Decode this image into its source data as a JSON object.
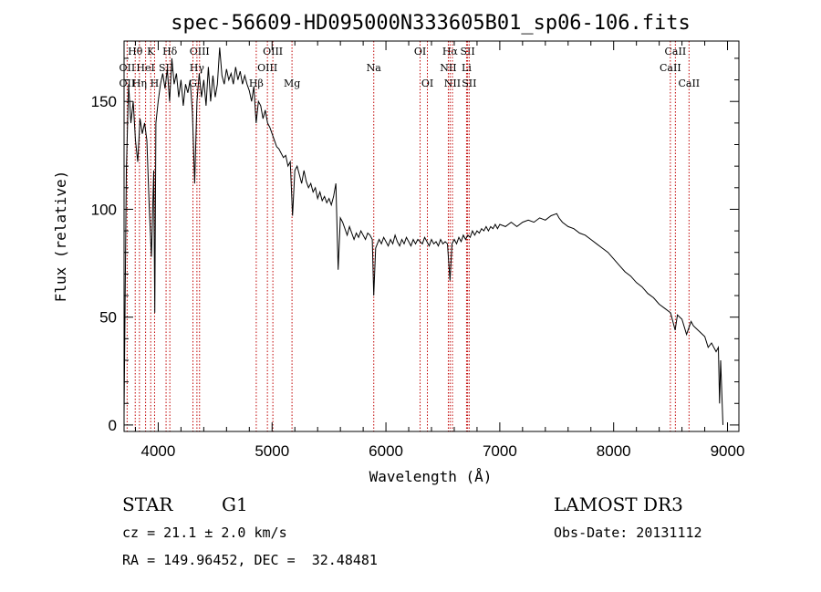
{
  "chart_data": {
    "type": "line",
    "title": "spec-56609-HD095000N333605B01_sp06-106.fits",
    "xlabel": "Wavelength (Å)",
    "ylabel": "Flux (relative)",
    "xlim": [
      3700,
      9100
    ],
    "ylim": [
      -3,
      178
    ],
    "xticks": [
      4000,
      5000,
      6000,
      7000,
      8000,
      9000
    ],
    "yticks": [
      0,
      50,
      100,
      150
    ],
    "grid": false,
    "series": [
      {
        "color": "#000000",
        "points": [
          [
            3700,
            5
          ],
          [
            3720,
            118
          ],
          [
            3740,
            158
          ],
          [
            3760,
            140
          ],
          [
            3780,
            150
          ],
          [
            3800,
            132
          ],
          [
            3820,
            122
          ],
          [
            3840,
            142
          ],
          [
            3860,
            135
          ],
          [
            3880,
            140
          ],
          [
            3900,
            132
          ],
          [
            3920,
            102
          ],
          [
            3940,
            78
          ],
          [
            3960,
            118
          ],
          [
            3970,
            52
          ],
          [
            3980,
            140
          ],
          [
            4000,
            150
          ],
          [
            4020,
            158
          ],
          [
            4040,
            163
          ],
          [
            4060,
            156
          ],
          [
            4080,
            165
          ],
          [
            4100,
            150
          ],
          [
            4120,
            170
          ],
          [
            4140,
            158
          ],
          [
            4160,
            163
          ],
          [
            4180,
            152
          ],
          [
            4200,
            160
          ],
          [
            4220,
            148
          ],
          [
            4240,
            158
          ],
          [
            4260,
            154
          ],
          [
            4280,
            160
          ],
          [
            4300,
            145
          ],
          [
            4320,
            112
          ],
          [
            4340,
            150
          ],
          [
            4360,
            163
          ],
          [
            4380,
            152
          ],
          [
            4400,
            160
          ],
          [
            4420,
            148
          ],
          [
            4440,
            166
          ],
          [
            4460,
            150
          ],
          [
            4480,
            162
          ],
          [
            4500,
            152
          ],
          [
            4520,
            158
          ],
          [
            4540,
            175
          ],
          [
            4560,
            162
          ],
          [
            4580,
            158
          ],
          [
            4600,
            165
          ],
          [
            4620,
            160
          ],
          [
            4640,
            163
          ],
          [
            4660,
            158
          ],
          [
            4680,
            166
          ],
          [
            4700,
            160
          ],
          [
            4720,
            164
          ],
          [
            4740,
            158
          ],
          [
            4760,
            162
          ],
          [
            4780,
            158
          ],
          [
            4800,
            155
          ],
          [
            4820,
            150
          ],
          [
            4840,
            157
          ],
          [
            4860,
            140
          ],
          [
            4880,
            150
          ],
          [
            4900,
            148
          ],
          [
            4920,
            142
          ],
          [
            4940,
            146
          ],
          [
            4960,
            140
          ],
          [
            4980,
            138
          ],
          [
            5000,
            135
          ],
          [
            5020,
            132
          ],
          [
            5040,
            129
          ],
          [
            5060,
            128
          ],
          [
            5080,
            126
          ],
          [
            5100,
            124
          ],
          [
            5120,
            125
          ],
          [
            5140,
            120
          ],
          [
            5160,
            122
          ],
          [
            5180,
            97
          ],
          [
            5200,
            118
          ],
          [
            5220,
            120
          ],
          [
            5240,
            116
          ],
          [
            5260,
            112
          ],
          [
            5280,
            118
          ],
          [
            5300,
            113
          ],
          [
            5320,
            110
          ],
          [
            5340,
            112
          ],
          [
            5360,
            108
          ],
          [
            5380,
            110
          ],
          [
            5400,
            105
          ],
          [
            5420,
            108
          ],
          [
            5440,
            104
          ],
          [
            5460,
            106
          ],
          [
            5480,
            103
          ],
          [
            5500,
            105
          ],
          [
            5520,
            102
          ],
          [
            5540,
            106
          ],
          [
            5560,
            112
          ],
          [
            5580,
            72
          ],
          [
            5600,
            96
          ],
          [
            5620,
            94
          ],
          [
            5640,
            91
          ],
          [
            5660,
            88
          ],
          [
            5680,
            92
          ],
          [
            5700,
            89
          ],
          [
            5720,
            86
          ],
          [
            5740,
            89
          ],
          [
            5760,
            87
          ],
          [
            5780,
            90
          ],
          [
            5800,
            88
          ],
          [
            5820,
            86
          ],
          [
            5840,
            89
          ],
          [
            5860,
            88
          ],
          [
            5880,
            86
          ],
          [
            5893,
            60
          ],
          [
            5910,
            82
          ],
          [
            5940,
            86
          ],
          [
            5960,
            84
          ],
          [
            5980,
            87
          ],
          [
            6000,
            85
          ],
          [
            6020,
            83
          ],
          [
            6040,
            86
          ],
          [
            6060,
            84
          ],
          [
            6080,
            88
          ],
          [
            6100,
            85
          ],
          [
            6120,
            83
          ],
          [
            6140,
            86
          ],
          [
            6160,
            84
          ],
          [
            6180,
            87
          ],
          [
            6200,
            85
          ],
          [
            6220,
            83
          ],
          [
            6240,
            86
          ],
          [
            6260,
            84
          ],
          [
            6280,
            86
          ],
          [
            6300,
            85
          ],
          [
            6320,
            84
          ],
          [
            6340,
            87
          ],
          [
            6360,
            85
          ],
          [
            6380,
            83
          ],
          [
            6400,
            86
          ],
          [
            6420,
            84
          ],
          [
            6440,
            85
          ],
          [
            6460,
            83
          ],
          [
            6480,
            86
          ],
          [
            6500,
            84
          ],
          [
            6520,
            85
          ],
          [
            6540,
            84
          ],
          [
            6563,
            67
          ],
          [
            6580,
            84
          ],
          [
            6600,
            86
          ],
          [
            6620,
            84
          ],
          [
            6640,
            87
          ],
          [
            6660,
            85
          ],
          [
            6680,
            88
          ],
          [
            6700,
            86
          ],
          [
            6720,
            88
          ],
          [
            6740,
            87
          ],
          [
            6760,
            90
          ],
          [
            6780,
            88
          ],
          [
            6800,
            90
          ],
          [
            6820,
            89
          ],
          [
            6840,
            91
          ],
          [
            6860,
            90
          ],
          [
            6880,
            92
          ],
          [
            6900,
            90
          ],
          [
            6920,
            92
          ],
          [
            6940,
            91
          ],
          [
            6960,
            93
          ],
          [
            6980,
            91
          ],
          [
            7000,
            93
          ],
          [
            7050,
            92
          ],
          [
            7100,
            94
          ],
          [
            7150,
            92
          ],
          [
            7200,
            94
          ],
          [
            7250,
            95
          ],
          [
            7300,
            94
          ],
          [
            7350,
            96
          ],
          [
            7400,
            95
          ],
          [
            7450,
            97
          ],
          [
            7500,
            98
          ],
          [
            7520,
            96
          ],
          [
            7550,
            94
          ],
          [
            7600,
            92
          ],
          [
            7650,
            91
          ],
          [
            7700,
            89
          ],
          [
            7750,
            88
          ],
          [
            7800,
            86
          ],
          [
            7850,
            84
          ],
          [
            7900,
            82
          ],
          [
            7950,
            80
          ],
          [
            8000,
            77
          ],
          [
            8050,
            74
          ],
          [
            8100,
            71
          ],
          [
            8150,
            69
          ],
          [
            8200,
            66
          ],
          [
            8250,
            64
          ],
          [
            8300,
            61
          ],
          [
            8350,
            59
          ],
          [
            8400,
            56
          ],
          [
            8450,
            54
          ],
          [
            8500,
            52
          ],
          [
            8540,
            44
          ],
          [
            8560,
            51
          ],
          [
            8600,
            49
          ],
          [
            8640,
            42
          ],
          [
            8680,
            48
          ],
          [
            8700,
            46
          ],
          [
            8740,
            44
          ],
          [
            8780,
            42
          ],
          [
            8800,
            41
          ],
          [
            8830,
            36
          ],
          [
            8860,
            38
          ],
          [
            8880,
            36
          ],
          [
            8900,
            34
          ],
          [
            8920,
            36
          ],
          [
            8930,
            10
          ],
          [
            8940,
            30
          ],
          [
            8960,
            0
          ]
        ]
      }
    ],
    "line_marks": [
      {
        "label": "Hθ",
        "wave": 3798,
        "row": 1
      },
      {
        "label": "OII",
        "wave": 3727,
        "row": 2
      },
      {
        "label": "OII",
        "wave": 3727,
        "row": 3
      },
      {
        "label": "HeI",
        "wave": 3889,
        "row": 2
      },
      {
        "label": "Hη",
        "wave": 3835,
        "row": 3
      },
      {
        "label": "K",
        "wave": 3934,
        "row": 1
      },
      {
        "label": "H",
        "wave": 3968,
        "row": 3
      },
      {
        "label": "SII",
        "wave": 4069,
        "row": 2
      },
      {
        "label": "Hδ",
        "wave": 4102,
        "row": 1
      },
      {
        "label": "OIII",
        "wave": 4363,
        "row": 1
      },
      {
        "label": "Hγ",
        "wave": 4340,
        "row": 2
      },
      {
        "label": "G",
        "wave": 4305,
        "row": 3
      },
      {
        "label": "Hβ",
        "wave": 4861,
        "row": 3
      },
      {
        "label": "OIII",
        "wave": 5007,
        "row": 1
      },
      {
        "label": "OIII",
        "wave": 4959,
        "row": 2
      },
      {
        "label": "Mg",
        "wave": 5175,
        "row": 3
      },
      {
        "label": "Na",
        "wave": 5893,
        "row": 2
      },
      {
        "label": "OI",
        "wave": 6300,
        "row": 1
      },
      {
        "label": "OI",
        "wave": 6364,
        "row": 3
      },
      {
        "label": "Hα",
        "wave": 6563,
        "row": 1
      },
      {
        "label": "NII",
        "wave": 6548,
        "row": 2
      },
      {
        "label": "NII",
        "wave": 6584,
        "row": 3
      },
      {
        "label": "SII",
        "wave": 6717,
        "row": 1
      },
      {
        "label": "Li",
        "wave": 6708,
        "row": 2
      },
      {
        "label": "SII",
        "wave": 6731,
        "row": 3
      },
      {
        "label": "CaII",
        "wave": 8542,
        "row": 1
      },
      {
        "label": "CaII",
        "wave": 8498,
        "row": 2
      },
      {
        "label": "CaII",
        "wave": 8662,
        "row": 3
      }
    ]
  },
  "info": {
    "class": "STAR",
    "subclass": "G1",
    "survey": "LAMOST DR3",
    "cz": "cz = 21.1 ± 2.0 km/s",
    "obs_date": "Obs-Date: 20131112",
    "radec": "RA = 149.96452, DEC =  32.48481"
  }
}
